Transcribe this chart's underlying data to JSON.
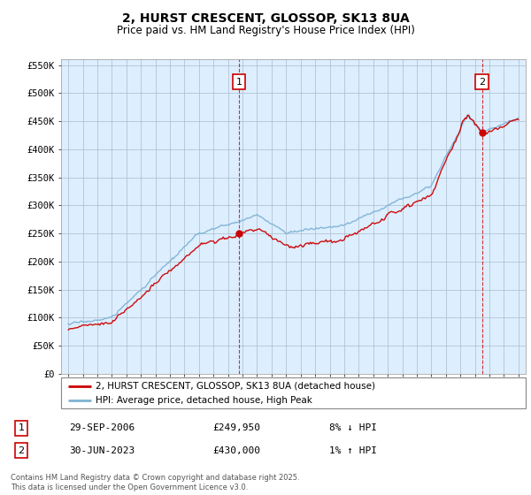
{
  "title": "2, HURST CRESCENT, GLOSSOP, SK13 8UA",
  "subtitle": "Price paid vs. HM Land Registry's House Price Index (HPI)",
  "legend_line1": "2, HURST CRESCENT, GLOSSOP, SK13 8UA (detached house)",
  "legend_line2": "HPI: Average price, detached house, High Peak",
  "footnote": "Contains HM Land Registry data © Crown copyright and database right 2025.\nThis data is licensed under the Open Government Licence v3.0.",
  "transaction1_label": "1",
  "transaction1_date": "29-SEP-2006",
  "transaction1_price": "£249,950",
  "transaction1_hpi": "8% ↓ HPI",
  "transaction2_label": "2",
  "transaction2_date": "30-JUN-2023",
  "transaction2_price": "£430,000",
  "transaction2_hpi": "1% ↑ HPI",
  "transaction1_x": 2006.75,
  "transaction1_y": 249950,
  "transaction2_x": 2023.5,
  "transaction2_y": 430000,
  "ylim": [
    0,
    560000
  ],
  "yticks": [
    0,
    50000,
    100000,
    150000,
    200000,
    250000,
    300000,
    350000,
    400000,
    450000,
    500000,
    550000
  ],
  "xlim_start": 1994.5,
  "xlim_end": 2026.5,
  "line_color_red": "#cc0000",
  "line_color_blue": "#7fb3d3",
  "chart_bg_color": "#ddeeff",
  "background_color": "#ffffff",
  "grid_color": "#aabbcc",
  "vline_color": "#cc0000",
  "dot_color": "#cc0000"
}
